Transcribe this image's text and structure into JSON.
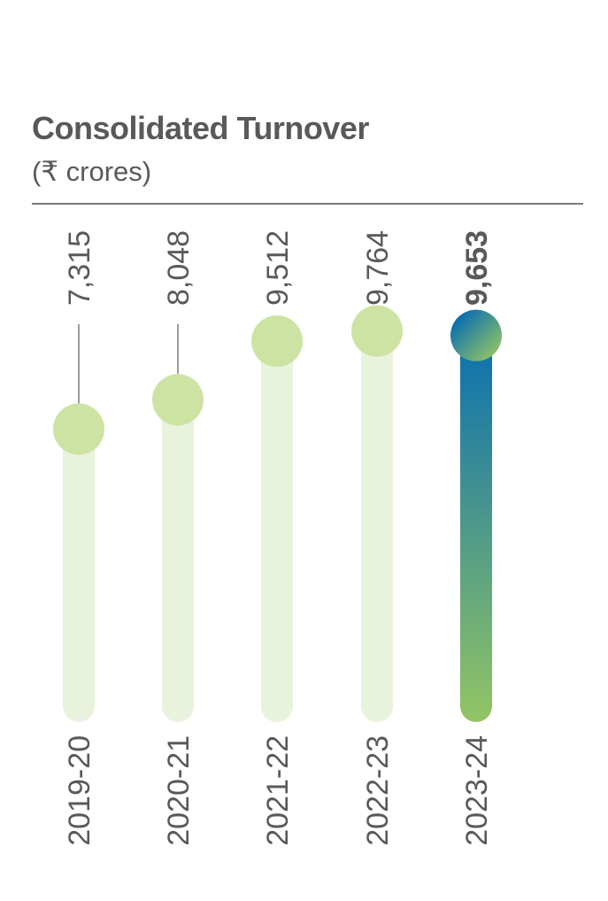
{
  "chart_data": {
    "type": "bar",
    "title": "Consolidated Turnover",
    "subtitle": "(₹ crores)",
    "categories": [
      "2019-20",
      "2020-21",
      "2021-22",
      "2022-23",
      "2023-24"
    ],
    "values": [
      7315,
      8048,
      9512,
      9764,
      9653
    ],
    "value_labels": [
      "7,315",
      "8,048",
      "9,512",
      "9,764",
      "9,653"
    ],
    "highlight_index": 4,
    "ylim": [
      0,
      12500
    ],
    "grid": false,
    "legend": "none"
  },
  "colors": {
    "text": "#58595b",
    "rule": "#7a7b7d",
    "bar_track": "#e9f2dc",
    "dot": "#cde3a3",
    "highlight_top": "#0a6fb0",
    "highlight_bottom": "#93c464"
  }
}
